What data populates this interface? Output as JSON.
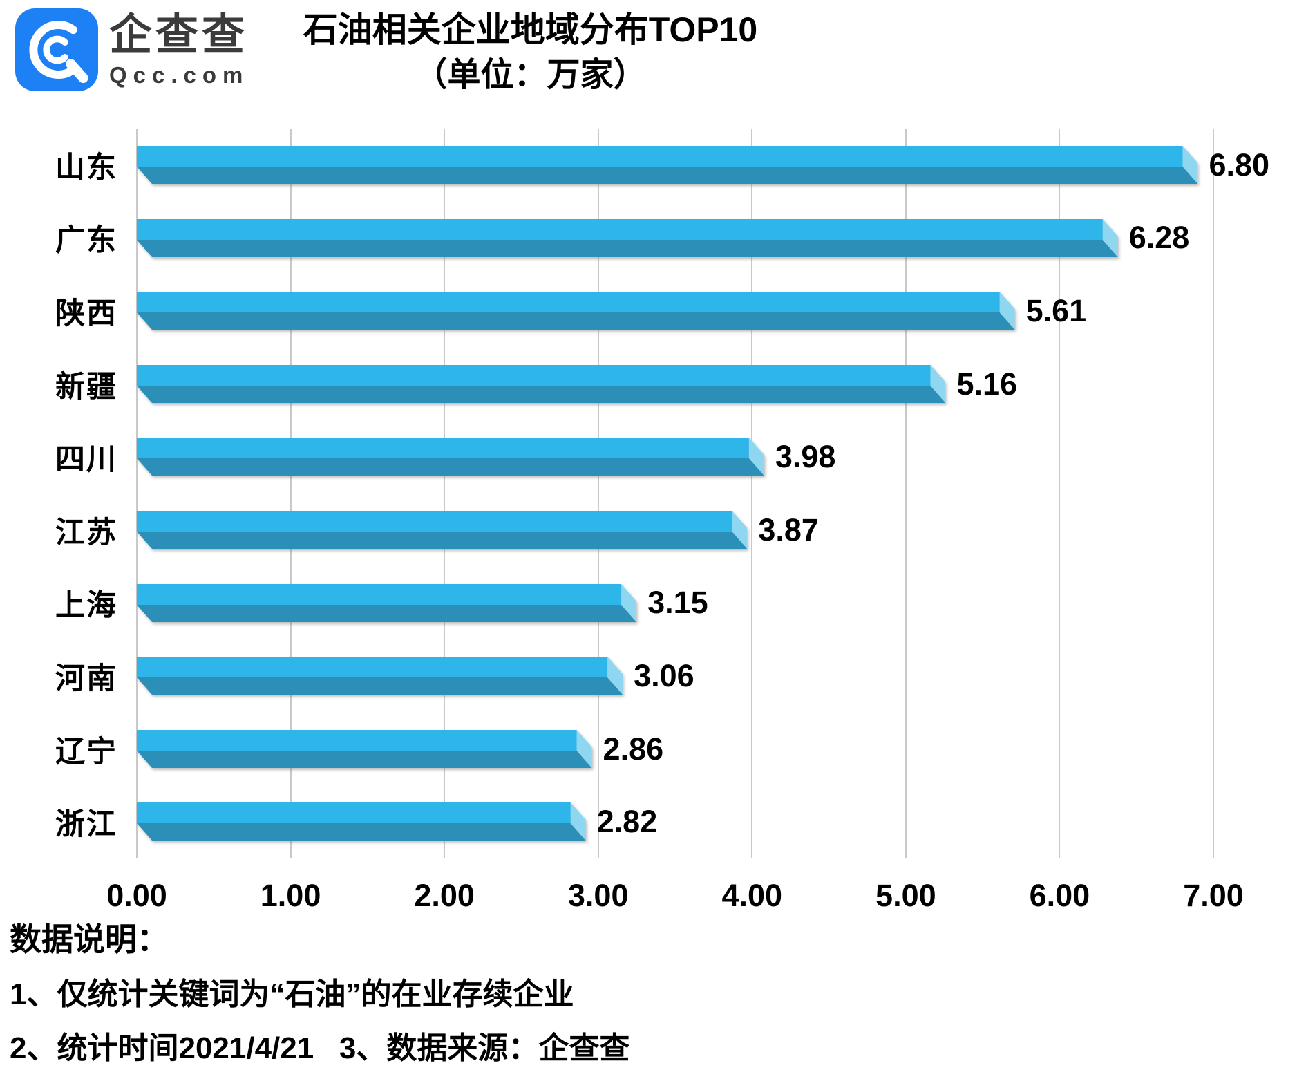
{
  "logo": {
    "brand": "企查查",
    "domain": "Qcc.com",
    "icon": "qcc-logo-icon",
    "icon_color": "#1e80f5"
  },
  "title": {
    "line1": "石油相关企业地域分布TOP10",
    "line2": "（单位：万家）"
  },
  "chart_data": {
    "type": "bar",
    "orientation": "horizontal",
    "title": "石油相关企业地域分布TOP10",
    "unit_label": "（单位：万家）",
    "categories": [
      "山东",
      "广东",
      "陕西",
      "新疆",
      "四川",
      "江苏",
      "上海",
      "河南",
      "辽宁",
      "浙江"
    ],
    "values": [
      6.8,
      6.28,
      5.61,
      5.16,
      3.98,
      3.87,
      3.15,
      3.06,
      2.86,
      2.82
    ],
    "value_labels": [
      "6.80",
      "6.28",
      "5.61",
      "5.16",
      "3.98",
      "3.87",
      "3.15",
      "3.06",
      "2.86",
      "2.82"
    ],
    "xlim": [
      0,
      7
    ],
    "x_ticks": [
      "0.00",
      "1.00",
      "2.00",
      "3.00",
      "4.00",
      "5.00",
      "6.00",
      "7.00"
    ],
    "grid": "vertical-gridlines-on",
    "legend": "none",
    "colors": {
      "bar_front": "#2eb6ea",
      "bar_bottom": "#2c8fb7",
      "bar_end_highlight": "#8fd6f0",
      "gridline": "#c9c9c9",
      "text": "#000000"
    }
  },
  "footer": {
    "heading": "数据说明：",
    "notes": [
      "1、仅统计关键词为“石油”的在业存续企业",
      "2、统计时间2021/4/21   3、数据来源：企查查"
    ]
  }
}
